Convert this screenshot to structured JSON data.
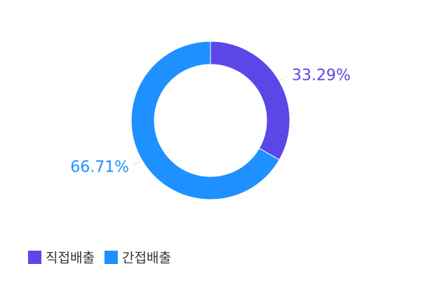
{
  "chart_data": {
    "type": "pie",
    "categories": [
      "직접배출",
      "간접배출"
    ],
    "values": [
      33.29,
      66.71
    ],
    "value_labels": [
      "33.29%",
      "66.71%"
    ],
    "colors": [
      "#5b47e8",
      "#1e90ff"
    ],
    "donut": true,
    "legend": "bottom-left"
  }
}
